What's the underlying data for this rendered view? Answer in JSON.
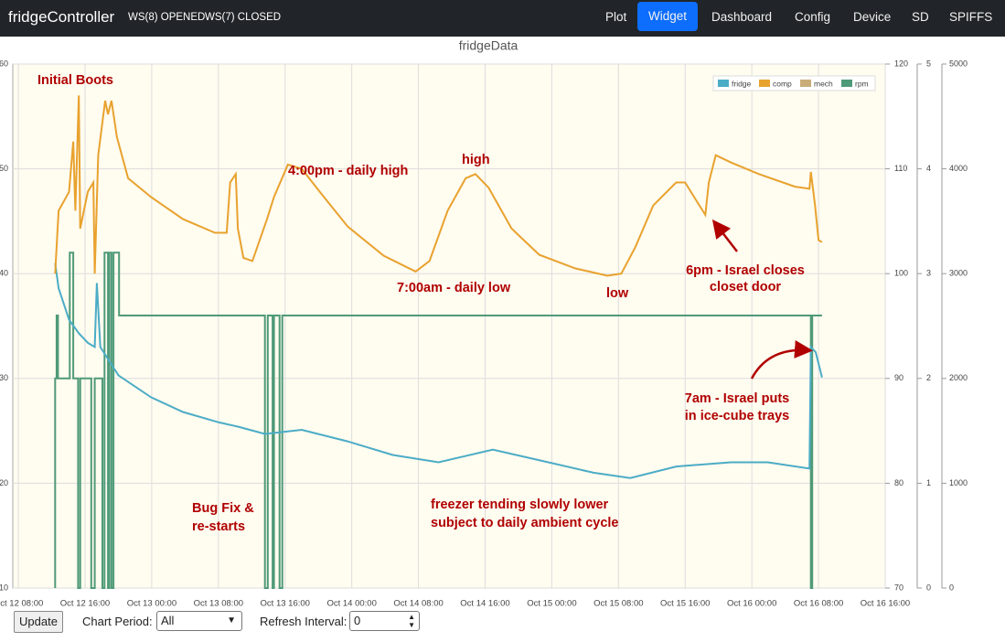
{
  "nav": {
    "brand": "fridgeController",
    "ws_status": [
      "WS(8) OPENED",
      "WS(7) CLOSED"
    ],
    "items": [
      "Plot",
      "Widget",
      "Dashboard",
      "Config",
      "Device",
      "SD",
      "SPIFFS"
    ],
    "active": "Widget"
  },
  "chart_data": {
    "type": "line",
    "title": "fridgeData",
    "grid": true,
    "legend": "upper right",
    "xlim": [
      "Oct 12 07:20",
      "Oct 16 16:00"
    ],
    "xticks": [
      "Oct 12 08:00",
      "Oct 12 16:00",
      "Oct 13 00:00",
      "Oct 13 08:00",
      "Oct 13 16:00",
      "Oct 14 00:00",
      "Oct 14 08:00",
      "Oct 14 16:00",
      "Oct 15 00:00",
      "Oct 15 08:00",
      "Oct 15 16:00",
      "Oct 16 00:00",
      "Oct 16 08:00",
      "Oct 16 16:00"
    ],
    "ylim": [
      10,
      60
    ],
    "yticks": [
      10,
      20,
      30,
      40,
      50,
      60
    ],
    "y2lim": [
      70,
      120
    ],
    "y2ticks": [
      70,
      80,
      90,
      100,
      110,
      120
    ],
    "y3lim": [
      0,
      5
    ],
    "y3ticks": [
      0,
      1,
      2,
      3,
      4,
      5
    ],
    "y4lim": [
      0,
      5000
    ],
    "y4ticks": [
      0,
      1000,
      2000,
      3000,
      4000,
      5000
    ],
    "series": [
      {
        "name": "fridge",
        "color": "#4bacc6",
        "axis": "y",
        "x": [
          "Oct 12 12:25",
          "Oct 12 12:50",
          "Oct 12 14:05",
          "Oct 12 15:15",
          "Oct 12 16:20",
          "Oct 12 17:10",
          "Oct 12 17:25",
          "Oct 12 17:50",
          "Oct 12 20:00",
          "Oct 12 23:55",
          "Oct 13 03:45",
          "Oct 13 08:05",
          "Oct 13 10:20",
          "Oct 13 13:35",
          "Oct 13 18:00",
          "Oct 13 23:30",
          "Oct 14 04:55",
          "Oct 14 10:25",
          "Oct 14 16:55",
          "Oct 14 23:35",
          "Oct 15 05:00",
          "Oct 15 09:25",
          "Oct 15 14:55",
          "Oct 15 21:30",
          "Oct 16 01:55",
          "Oct 16 06:55",
          "Oct 16 07:05",
          "Oct 16 07:40",
          "Oct 16 08:25"
        ],
        "values": [
          41,
          38.6,
          35.6,
          34.3,
          33.4,
          33,
          39.1,
          33,
          30.3,
          28.2,
          26.8,
          25.8,
          25.4,
          24.7,
          25.1,
          24,
          22.7,
          22,
          23.2,
          22,
          21,
          20.5,
          21.6,
          22,
          22,
          21.4,
          33,
          32.5,
          30.1
        ]
      },
      {
        "name": "comp",
        "color": "#e8a22e",
        "axis": "y2",
        "x": [
          "Oct 12 12:25",
          "Oct 12 12:50",
          "Oct 12 14:05",
          "Oct 12 14:35",
          "Oct 12 14:50",
          "Oct 12 15:15",
          "Oct 12 15:25",
          "Oct 12 16:20",
          "Oct 12 17:00",
          "Oct 12 17:10",
          "Oct 12 17:35",
          "Oct 12 18:25",
          "Oct 12 18:45",
          "Oct 12 19:10",
          "Oct 12 19:50",
          "Oct 12 21:10",
          "Oct 12 23:55",
          "Oct 13 03:45",
          "Oct 13 07:35",
          "Oct 13 09:00",
          "Oct 13 09:25",
          "Oct 13 10:05",
          "Oct 13 10:20",
          "Oct 13 11:00",
          "Oct 13 12:05",
          "Oct 13 13:50",
          "Oct 13 14:40",
          "Oct 13 16:20",
          "Oct 13 18:00",
          "Oct 13 20:10",
          "Oct 13 23:30",
          "Oct 14 03:50",
          "Oct 14 07:40",
          "Oct 14 09:20",
          "Oct 14 11:30",
          "Oct 14 13:40",
          "Oct 14 14:50",
          "Oct 14 16:25",
          "Oct 14 19:10",
          "Oct 14 22:30",
          "Oct 15 02:50",
          "Oct 15 06:40",
          "Oct 15 08:20",
          "Oct 15 10:00",
          "Oct 15 12:10",
          "Oct 15 14:55",
          "Oct 15 16:00",
          "Oct 15 17:05",
          "Oct 15 18:25",
          "Oct 15 18:50",
          "Oct 15 19:40",
          "Oct 15 21:30",
          "Oct 16 00:50",
          "Oct 16 05:10",
          "Oct 16 06:55",
          "Oct 16 07:05",
          "Oct 16 07:35",
          "Oct 16 08:00",
          "Oct 16 08:25"
        ],
        "values": [
          100,
          106,
          107.8,
          112.6,
          106,
          117,
          104.3,
          107.8,
          108.7,
          100,
          111.3,
          116.5,
          115.2,
          116.5,
          113,
          109.1,
          107.3,
          105.2,
          103.9,
          103.9,
          108.7,
          109.5,
          104.3,
          101.5,
          101.2,
          105.2,
          107.3,
          110.4,
          110,
          107.8,
          104.5,
          101.7,
          100.2,
          101.2,
          106,
          109.1,
          109.5,
          108.2,
          104.3,
          101.8,
          100.5,
          99.8,
          100,
          102.5,
          106.5,
          108.7,
          108.7,
          107.3,
          105.6,
          108.7,
          111.3,
          110.6,
          109.5,
          108.3,
          108.1,
          109.7,
          106.5,
          103.2,
          103
        ]
      },
      {
        "name": "mech",
        "color": "#c9ad78",
        "axis": "y3",
        "x": [],
        "values": []
      },
      {
        "name": "rpm",
        "color": "#4f9a78",
        "axis": "y4",
        "x": [
          "Oct 12 12:25",
          "Oct 12 12:25",
          "Oct 12 12:35",
          "Oct 12 12:35",
          "Oct 12 12:45",
          "Oct 12 12:45",
          "Oct 12 14:10",
          "Oct 12 14:10",
          "Oct 12 14:35",
          "Oct 12 14:35",
          "Oct 12 15:10",
          "Oct 12 15:10",
          "Oct 12 15:25",
          "Oct 12 15:25",
          "Oct 12 16:45",
          "Oct 12 16:45",
          "Oct 12 17:10",
          "Oct 12 17:10",
          "Oct 12 18:05",
          "Oct 12 18:05",
          "Oct 12 18:20",
          "Oct 12 18:20",
          "Oct 12 18:45",
          "Oct 12 18:45",
          "Oct 12 18:55",
          "Oct 12 18:55",
          "Oct 12 19:10",
          "Oct 12 19:10",
          "Oct 12 19:25",
          "Oct 12 19:25",
          "Oct 12 20:05",
          "Oct 12 20:05",
          "Oct 13 13:35",
          "Oct 13 13:35",
          "Oct 13 13:55",
          "Oct 13 13:55",
          "Oct 13 14:30",
          "Oct 13 14:30",
          "Oct 13 14:40",
          "Oct 13 14:40",
          "Oct 13 15:20",
          "Oct 13 15:20",
          "Oct 13 15:40",
          "Oct 13 15:40",
          "Oct 16 07:05",
          "Oct 16 07:05",
          "Oct 16 07:15",
          "Oct 16 07:15",
          "Oct 16 08:25"
        ],
        "values": [
          0,
          2000,
          2000,
          2600,
          2600,
          2000,
          2000,
          3200,
          3200,
          2000,
          2000,
          0,
          0,
          2000,
          2000,
          0,
          0,
          2000,
          2000,
          0,
          0,
          3200,
          3200,
          0,
          0,
          3200,
          3200,
          0,
          0,
          3200,
          3200,
          2600,
          2600,
          0,
          0,
          2600,
          2600,
          0,
          0,
          2600,
          2600,
          0,
          0,
          2600,
          2600,
          0,
          0,
          2600,
          2600
        ]
      }
    ],
    "annotations": [
      "Initial Boots",
      "4:00pm - daily high",
      "high",
      "7:00am - daily low",
      "low",
      "6pm - Israel closes",
      "closet door",
      "7am - Israel puts",
      "in ice-cube trays",
      "Bug Fix &",
      "re-starts",
      "freezer tending slowly lower",
      "subject to daily ambient cycle"
    ]
  },
  "controls": {
    "button": "Update",
    "period_label": "Chart Period:",
    "period_value": "All",
    "refresh_label": "Refresh Interval:",
    "refresh_value": "0"
  }
}
